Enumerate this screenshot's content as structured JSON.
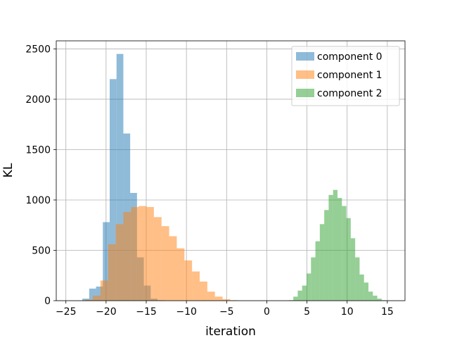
{
  "chart_data": {
    "type": "bar",
    "subtype": "histogram",
    "xlabel": "iteration",
    "ylabel": "KL",
    "xlim": [
      -26.2,
      17.2
    ],
    "ylim": [
      0,
      2580
    ],
    "xticks": [
      -25,
      -20,
      -15,
      -10,
      -5,
      0,
      5,
      10,
      15
    ],
    "yticks": [
      0,
      500,
      1000,
      1500,
      2000,
      2500
    ],
    "grid": true,
    "legend_position": "top-right",
    "opacity": 0.5,
    "series": [
      {
        "name": "component 0",
        "color": "#1f77b4",
        "bin_width": 0.85,
        "bin_start": -22.95,
        "values": [
          20,
          120,
          140,
          780,
          2200,
          2450,
          1660,
          1070,
          430,
          150,
          20,
          5
        ]
      },
      {
        "name": "component 1",
        "color": "#ff7f0e",
        "bin_width": 0.95,
        "bin_start": -22.6,
        "values": [
          10,
          50,
          200,
          560,
          760,
          880,
          930,
          940,
          930,
          830,
          740,
          640,
          520,
          400,
          290,
          190,
          90,
          40,
          15,
          5
        ]
      },
      {
        "name": "component 2",
        "color": "#2ca02c",
        "bin_width": 0.55,
        "bin_start": 2.75,
        "values": [
          5,
          40,
          100,
          150,
          270,
          430,
          590,
          760,
          900,
          1050,
          1100,
          1020,
          940,
          820,
          620,
          430,
          260,
          180,
          90,
          50,
          20,
          5
        ]
      }
    ]
  }
}
